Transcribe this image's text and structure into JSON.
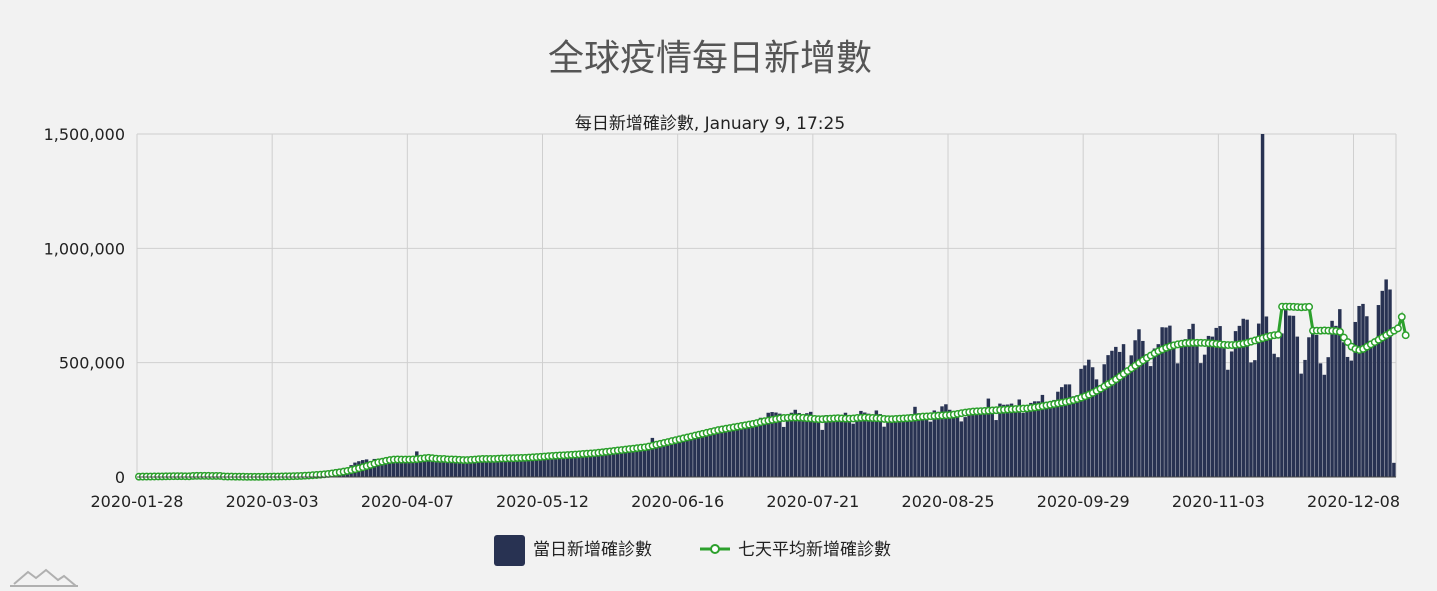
{
  "chart_data": {
    "type": "bar",
    "title": "全球疫情每日新增數",
    "subtitle": "每日新增確診數, January 9, 17:25",
    "xlabel": "",
    "ylabel": "",
    "ylim": [
      0,
      1500000
    ],
    "y_ticks": [
      0,
      500000,
      1000000,
      1500000
    ],
    "y_tick_labels": [
      "0",
      "500,000",
      "1,000,000",
      "1,500,000"
    ],
    "x_tick_labels": [
      "2020-01-28",
      "2020-03-03",
      "2020-04-07",
      "2020-05-12",
      "2020-06-16",
      "2020-07-21",
      "2020-08-25",
      "2020-09-29",
      "2020-11-03",
      "2020-12-08"
    ],
    "x_start": "2020-01-28",
    "grid": true,
    "legend_position": "bottom",
    "series": [
      {
        "name": "當日新增確診數",
        "type": "bar",
        "color": "#283252",
        "values": [
          1900,
          1700,
          2000,
          2100,
          2600,
          2800,
          3200,
          3900,
          3700,
          3200,
          3400,
          2700,
          2100,
          2500,
          15200,
          6400,
          2100,
          2600,
          2300,
          2200,
          2000,
          1900,
          1400,
          1100,
          900,
          600,
          700,
          600,
          800,
          900,
          1100,
          1500,
          1800,
          2400,
          2600,
          3400,
          3900,
          4100,
          4200,
          5300,
          6000,
          6800,
          8000,
          9800,
          11000,
          12500,
          14000,
          17000,
          20500,
          24000,
          30000,
          34000,
          37000,
          39000,
          41000,
          52000,
          63000,
          69000,
          74000,
          77000,
          67000,
          79000,
          75000,
          72000,
          79000,
          85000,
          84000,
          78000,
          73000,
          67000,
          71000,
          82000,
          112000,
          92000,
          84000,
          70000,
          80000,
          80000,
          80000,
          76000,
          71000,
          76000,
          68000,
          67000,
          75000,
          84000,
          81000,
          74000,
          81000,
          90000,
          75000,
          80000,
          72000,
          84000,
          89000,
          74000,
          88000,
          84000,
          86000,
          82000,
          75000,
          87000,
          82000,
          92000,
          88000,
          91000,
          102000,
          86000,
          83000,
          98000,
          94000,
          103000,
          95000,
          96000,
          107000,
          98000,
          97000,
          110000,
          98000,
          112000,
          121000,
          103000,
          111000,
          127000,
          120000,
          112000,
          119000,
          125000,
          114000,
          140000,
          130000,
          124000,
          125000,
          171000,
          128000,
          140000,
          159000,
          157000,
          150000,
          175000,
          181000,
          174000,
          177000,
          189000,
          168000,
          180000,
          205000,
          200000,
          196000,
          203000,
          192000,
          213000,
          211000,
          224000,
          226000,
          232000,
          226000,
          239000,
          217000,
          238000,
          245000,
          259000,
          258000,
          281000,
          284000,
          282000,
          277000,
          219000,
          270000,
          281000,
          294000,
          280000,
          260000,
          279000,
          285000,
          258000,
          268000,
          206000,
          271000,
          261000,
          266000,
          252000,
          258000,
          281000,
          268000,
          233000,
          247000,
          289000,
          282000,
          277000,
          245000,
          291000,
          275000,
          220000,
          239000,
          265000,
          251000,
          270000,
          271000,
          262000,
          275000,
          307000,
          279000,
          257000,
          262000,
          242000,
          291000,
          285000,
          309000,
          318000,
          294000,
          274000,
          277000,
          243000,
          262000,
          294000,
          289000,
          275000,
          280000,
          299000,
          343000,
          278000,
          249000,
          321000,
          316000,
          317000,
          321000,
          308000,
          339000,
          280000,
          300000,
          324000,
          331000,
          331000,
          359000,
          327000,
          301000,
          337000,
          373000,
          393000,
          405000,
          405000,
          353000,
          358000,
          473000,
          488000,
          513000,
          480000,
          427000,
          374000,
          493000,
          533000,
          552000,
          569000,
          547000,
          581000,
          467000,
          532000,
          598000,
          646000,
          595000,
          518000,
          485000,
          562000,
          581000,
          655000,
          654000,
          662000,
          563000,
          497000,
          583000,
          603000,
          647000,
          670000,
          584000,
          498000,
          535000,
          617000,
          614000,
          652000,
          660000,
          584000,
          469000,
          549000,
          638000,
          661000,
          692000,
          688000,
          501000,
          511000,
          671000,
          1507000,
          702000,
          611000,
          539000,
          524000,
          628000,
          731000,
          706000,
          705000,
          614000,
          452000,
          512000,
          611000,
          641000,
          621000,
          497000,
          447000,
          524000,
          683000,
          661000,
          734000,
          589000,
          525000,
          509000,
          678000,
          748000,
          757000,
          703000,
          594000,
          585000,
          752000,
          814000,
          864000,
          820000,
          62000
        ]
      },
      {
        "name": "七天平均新增確診數",
        "type": "line",
        "color": "#2ca02c",
        "values": [
          1500,
          1600,
          1800,
          2000,
          2200,
          2400,
          2600,
          2900,
          3200,
          3400,
          3500,
          3500,
          3200,
          3000,
          4700,
          5000,
          5100,
          5000,
          4900,
          4800,
          4700,
          4700,
          2400,
          2000,
          1700,
          1500,
          1300,
          1100,
          900,
          900,
          900,
          900,
          1000,
          1200,
          1400,
          1600,
          2000,
          2300,
          2700,
          3100,
          3600,
          4100,
          4800,
          5600,
          6500,
          7600,
          8800,
          10100,
          11600,
          13400,
          15500,
          18000,
          20700,
          23500,
          26700,
          30200,
          34000,
          38200,
          42800,
          47700,
          53000,
          58500,
          64000,
          67000,
          71000,
          74000,
          76000,
          76500,
          76000,
          76300,
          76300,
          77000,
          78000,
          80000,
          82000,
          84000,
          82000,
          80000,
          79000,
          79000,
          77000,
          77000,
          76000,
          75000,
          74000,
          74000,
          75000,
          76000,
          78000,
          79000,
          79000,
          79000,
          79000,
          80000,
          81000,
          81000,
          82000,
          82000,
          83000,
          83500,
          84000,
          85000,
          86000,
          87000,
          88000,
          89500,
          91000,
          92000,
          93000,
          94000,
          95000,
          96000,
          97000,
          98000,
          99000,
          101000,
          102000,
          103000,
          104000,
          106000,
          108000,
          110000,
          112000,
          114000,
          116000,
          118000,
          120000,
          122000,
          124000,
          126000,
          128000,
          130000,
          133000,
          137000,
          141000,
          145000,
          149000,
          153000,
          157000,
          161000,
          165000,
          169000,
          173000,
          177000,
          181000,
          185000,
          189000,
          193000,
          197000,
          201000,
          205000,
          208000,
          211000,
          214000,
          217000,
          220000,
          223000,
          226000,
          229000,
          232000,
          236000,
          240000,
          244000,
          247000,
          250000,
          253000,
          256000,
          258000,
          259000,
          260000,
          260000,
          260000,
          259000,
          257000,
          256000,
          254000,
          253000,
          253000,
          254000,
          255000,
          256000,
          257000,
          256000,
          255000,
          255000,
          256000,
          258000,
          259000,
          260000,
          259000,
          258000,
          257000,
          256000,
          254000,
          253000,
          253000,
          254000,
          255000,
          256000,
          257000,
          258000,
          260000,
          262000,
          264000,
          265000,
          266000,
          267000,
          268000,
          269000,
          270000,
          271000,
          273000,
          276000,
          279000,
          282000,
          284000,
          286000,
          287000,
          288000,
          289000,
          290000,
          291000,
          292000,
          293000,
          294000,
          295000,
          296000,
          297000,
          298000,
          299000,
          300000,
          302000,
          304000,
          307000,
          310000,
          313000,
          316000,
          319000,
          322000,
          325000,
          328000,
          332000,
          336000,
          341000,
          347000,
          353000,
          360000,
          368000,
          377000,
          386000,
          396000,
          406000,
          416000,
          427000,
          439000,
          451000,
          463000,
          475000,
          487000,
          499000,
          510000,
          521000,
          531000,
          541000,
          550000,
          558000,
          565000,
          571000,
          576000,
          580000,
          583000,
          585000,
          586000,
          587000,
          587000,
          587000,
          586000,
          585000,
          584000,
          582000,
          580000,
          578000,
          577000,
          577000,
          578000,
          580000,
          583000,
          587000,
          592000,
          597000,
          602000,
          607000,
          612000,
          617000,
          620000,
          622000,
          745000,
          745000,
          745000,
          744000,
          743000,
          742000,
          743000,
          744000,
          640000,
          640000,
          640000,
          641000,
          640000,
          639000,
          638000,
          635000,
          610000,
          590000,
          570000,
          560000,
          555000,
          560000,
          570000,
          580000,
          590000,
          600000,
          610000,
          620000,
          630000,
          640000,
          650000,
          700000,
          620000
        ]
      }
    ]
  }
}
